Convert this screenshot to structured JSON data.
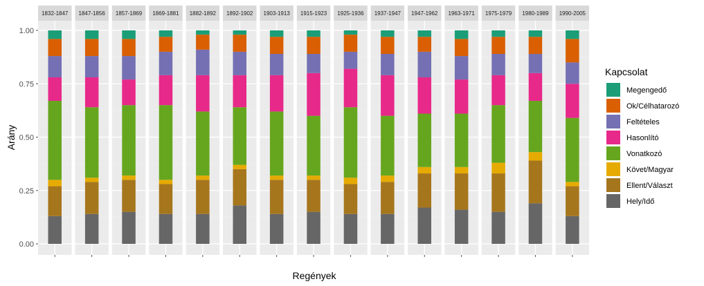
{
  "chart_data": {
    "type": "bar",
    "stacked": true,
    "faceted": true,
    "xlabel": "Regények",
    "ylabel": "Arány",
    "ylim": [
      0,
      1
    ],
    "yticks": [
      "0.00",
      "0.25",
      "0.50",
      "0.75",
      "1.00"
    ],
    "grid": true,
    "legend_position": "right",
    "legend_title": "Kapcsolat",
    "panels": [
      "1832-1847",
      "1847-1856",
      "1857-1869",
      "1869-1881",
      "1882-1892",
      "1892-1902",
      "1903-1913",
      "1915-1923",
      "1925-1936",
      "1937-1947",
      "1947-1962",
      "1963-1971",
      "1975-1979",
      "1980-1989",
      "1990-2005"
    ],
    "series": [
      {
        "name": "Hely/Idő",
        "color": "#666666",
        "values": [
          0.13,
          0.14,
          0.15,
          0.14,
          0.14,
          0.18,
          0.14,
          0.15,
          0.14,
          0.14,
          0.17,
          0.16,
          0.15,
          0.19,
          0.13
        ]
      },
      {
        "name": "Ellent/Választ",
        "color": "#A6761D",
        "values": [
          0.14,
          0.15,
          0.15,
          0.14,
          0.16,
          0.17,
          0.16,
          0.15,
          0.14,
          0.15,
          0.16,
          0.17,
          0.18,
          0.2,
          0.14
        ]
      },
      {
        "name": "Követ/Magyar",
        "color": "#E6AB02",
        "values": [
          0.03,
          0.02,
          0.02,
          0.02,
          0.02,
          0.02,
          0.02,
          0.02,
          0.03,
          0.03,
          0.03,
          0.03,
          0.05,
          0.04,
          0.02
        ]
      },
      {
        "name": "Vonatkozó",
        "color": "#66A61E",
        "values": [
          0.37,
          0.33,
          0.33,
          0.35,
          0.3,
          0.27,
          0.3,
          0.28,
          0.33,
          0.28,
          0.25,
          0.25,
          0.27,
          0.24,
          0.3
        ]
      },
      {
        "name": "Hasonlító",
        "color": "#E7298A",
        "values": [
          0.11,
          0.14,
          0.12,
          0.14,
          0.17,
          0.15,
          0.17,
          0.2,
          0.18,
          0.19,
          0.17,
          0.16,
          0.14,
          0.13,
          0.16
        ]
      },
      {
        "name": "Feltételes",
        "color": "#7570B3",
        "values": [
          0.1,
          0.1,
          0.11,
          0.11,
          0.12,
          0.11,
          0.1,
          0.09,
          0.08,
          0.1,
          0.12,
          0.11,
          0.1,
          0.09,
          0.1
        ]
      },
      {
        "name": "Ok/Célhatarozó",
        "color": "#D95F02",
        "values": [
          0.08,
          0.08,
          0.08,
          0.07,
          0.07,
          0.08,
          0.08,
          0.08,
          0.08,
          0.08,
          0.07,
          0.08,
          0.08,
          0.08,
          0.11
        ]
      },
      {
        "name": "Megengedő",
        "color": "#1B9E77",
        "values": [
          0.04,
          0.04,
          0.04,
          0.03,
          0.02,
          0.02,
          0.03,
          0.03,
          0.02,
          0.03,
          0.03,
          0.04,
          0.03,
          0.03,
          0.04
        ]
      }
    ]
  }
}
